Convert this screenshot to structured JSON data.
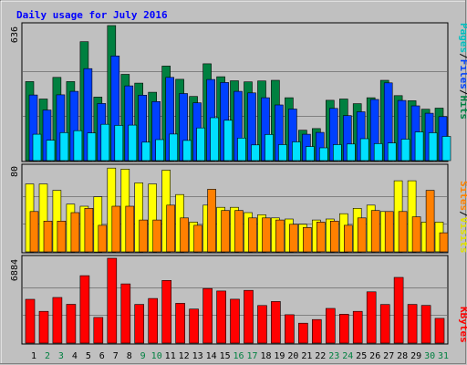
{
  "chart_data": [
    {
      "type": "bar",
      "title": "Daily usage for July 2016",
      "panel": "hits-files-pages",
      "categories": [
        "1",
        "2",
        "3",
        "4",
        "5",
        "6",
        "7",
        "8",
        "9",
        "10",
        "11",
        "12",
        "13",
        "14",
        "15",
        "16",
        "17",
        "18",
        "19",
        "20",
        "21",
        "22",
        "23",
        "24",
        "25",
        "26",
        "27",
        "28",
        "29",
        "30",
        "31"
      ],
      "weekend_days": [
        "2",
        "3",
        "9",
        "10",
        "16",
        "17",
        "23",
        "24",
        "30",
        "31"
      ],
      "ymax": 636,
      "ymax_label": "636",
      "series": [
        {
          "name": "Hits",
          "color": "#008040",
          "values": [
            372,
            290,
            392,
            372,
            560,
            299,
            636,
            406,
            365,
            322,
            445,
            383,
            302,
            456,
            395,
            376,
            371,
            375,
            378,
            296,
            143,
            151,
            284,
            290,
            268,
            296,
            378,
            306,
            282,
            242,
            247
          ]
        },
        {
          "name": "Files",
          "color": "#0040FF",
          "values": [
            309,
            238,
            310,
            326,
            433,
            269,
            493,
            352,
            308,
            278,
            392,
            316,
            272,
            382,
            368,
            326,
            319,
            296,
            262,
            243,
            124,
            133,
            246,
            212,
            230,
            288,
            366,
            283,
            258,
            223,
            207
          ]
        },
        {
          "name": "Pages",
          "color": "#00E0FF",
          "values": [
            124,
            96,
            132,
            141,
            130,
            171,
            166,
            167,
            87,
            99,
            125,
            95,
            154,
            202,
            190,
            106,
            74,
            123,
            75,
            88,
            66,
            60,
            75,
            78,
            103,
            80,
            83,
            101,
            135,
            131,
            114
          ]
        }
      ]
    },
    {
      "type": "bar",
      "panel": "visits-sites",
      "categories": [
        "1",
        "2",
        "3",
        "4",
        "5",
        "6",
        "7",
        "8",
        "9",
        "10",
        "11",
        "12",
        "13",
        "14",
        "15",
        "16",
        "17",
        "18",
        "19",
        "20",
        "21",
        "22",
        "23",
        "24",
        "25",
        "26",
        "27",
        "28",
        "29",
        "30",
        "31"
      ],
      "ymax": 80,
      "ymax_label": "80",
      "series": [
        {
          "name": "Visits",
          "color": "#FFFF00",
          "values": [
            64,
            64,
            58,
            45,
            43,
            52,
            79,
            78,
            65,
            64,
            77,
            54,
            28,
            44,
            42,
            42,
            37,
            35,
            32,
            31,
            26,
            30,
            31,
            36,
            41,
            44,
            38,
            67,
            67,
            28,
            28
          ]
        },
        {
          "name": "Sites",
          "color": "#FF8000",
          "values": [
            38,
            29,
            29,
            37,
            41,
            25,
            43,
            43,
            30,
            30,
            44,
            32,
            25,
            59,
            39,
            39,
            32,
            32,
            30,
            26,
            23,
            28,
            29,
            25,
            32,
            39,
            38,
            38,
            33,
            58,
            18
          ]
        }
      ]
    },
    {
      "type": "bar",
      "panel": "kbytes",
      "categories": [
        "1",
        "2",
        "3",
        "4",
        "5",
        "6",
        "7",
        "8",
        "9",
        "10",
        "11",
        "12",
        "13",
        "14",
        "15",
        "16",
        "17",
        "18",
        "19",
        "20",
        "21",
        "22",
        "23",
        "24",
        "25",
        "26",
        "27",
        "28",
        "29",
        "30",
        "31"
      ],
      "ymax": 6884,
      "ymax_label": "6884",
      "series": [
        {
          "name": "KBytes",
          "color": "#FF0000",
          "values": [
            3550,
            2578,
            3703,
            3146,
            5472,
            2081,
            6884,
            4801,
            3138,
            3622,
            5083,
            3230,
            2758,
            4430,
            4225,
            3564,
            4278,
            3046,
            3378,
            2304,
            1613,
            1909,
            2811,
            2341,
            2579,
            4157,
            3129,
            5332,
            3136,
            3054,
            2005
          ]
        }
      ]
    }
  ],
  "legend": {
    "pages": "Pages",
    "files": "Files",
    "hits": "Hits",
    "sites": "Sites",
    "visits": "Visits",
    "kbytes": "KBytes",
    "separator": "/"
  },
  "colors": {
    "background": "#C0C0C0",
    "title": "#0000FF",
    "weekday_label": "#000000",
    "weekend_label": "#008040",
    "grid": "#808080"
  }
}
